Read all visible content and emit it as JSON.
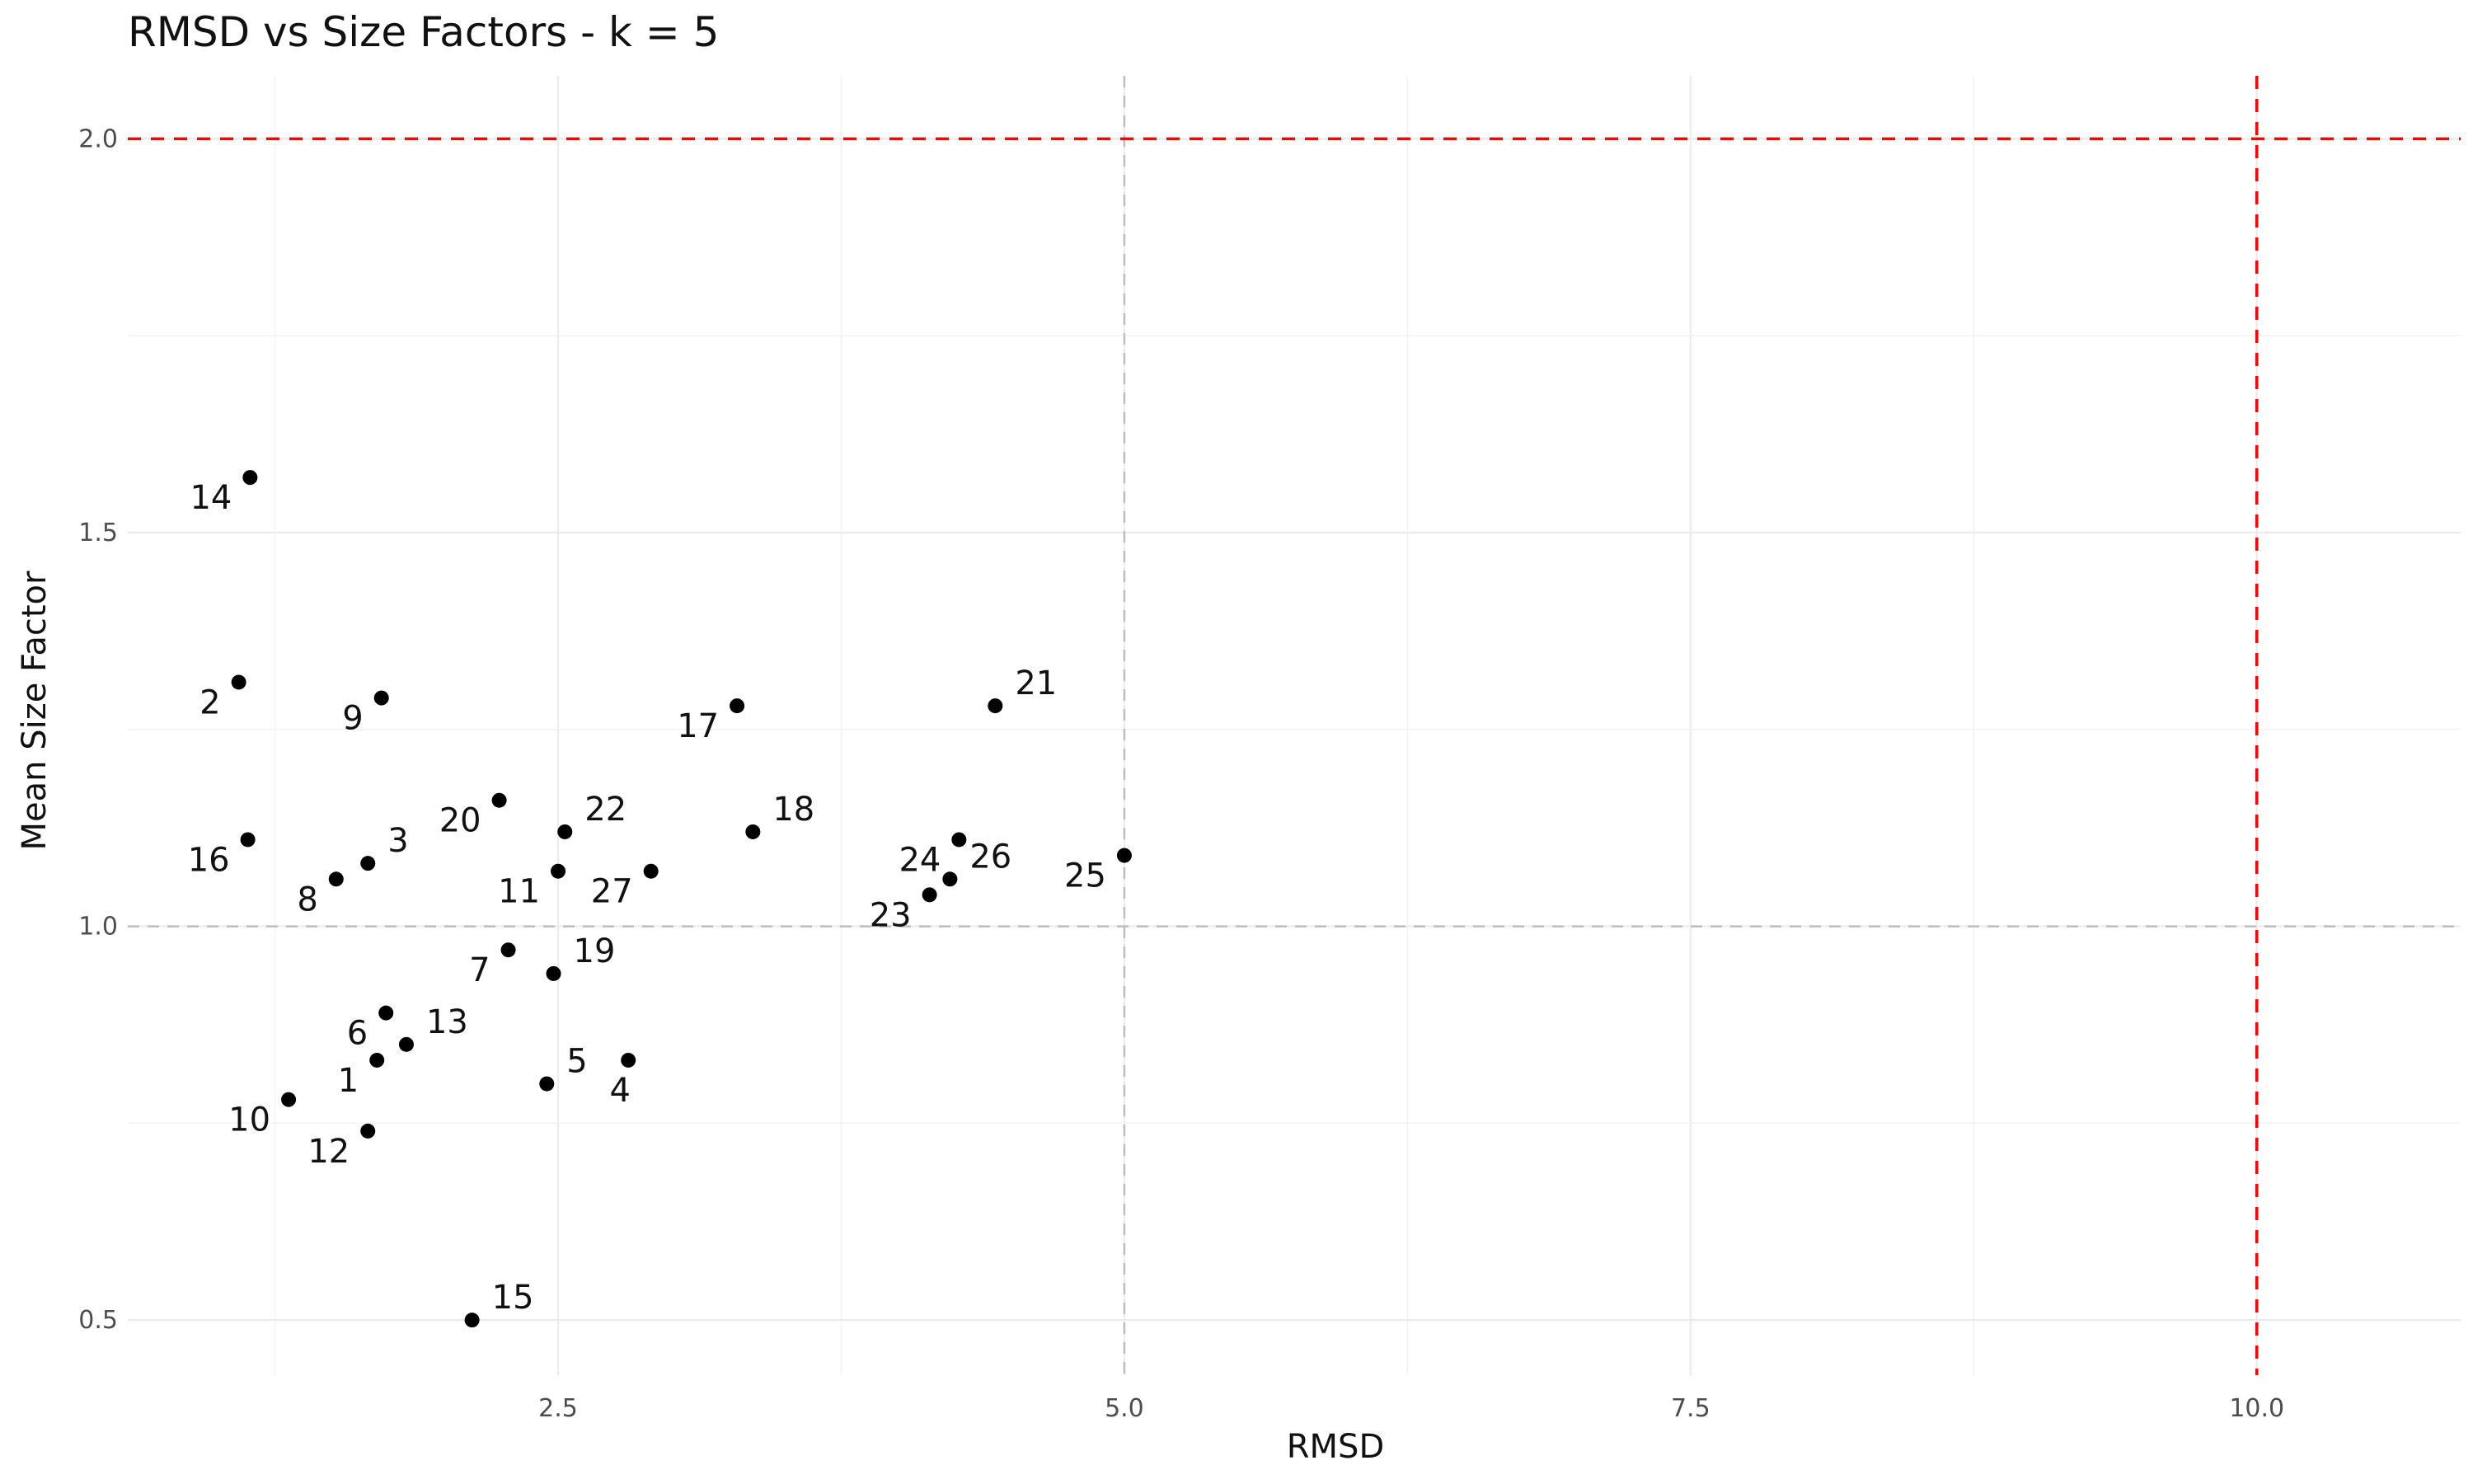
{
  "chart_data": {
    "type": "scatter",
    "title": "RMSD vs Size Factors - k = 5",
    "xlabel": "RMSD",
    "ylabel": "Mean Size Factor",
    "xlim": [
      0.6,
      10.9
    ],
    "ylim": [
      0.43,
      2.08
    ],
    "x_ticks": [
      2.5,
      5.0,
      7.5,
      10.0
    ],
    "x_tick_labels": [
      "2.5",
      "5.0",
      "7.5",
      "10.0"
    ],
    "y_ticks": [
      0.5,
      1.0,
      1.5,
      2.0
    ],
    "y_tick_labels": [
      "0.5",
      "1.0",
      "1.5",
      "2.0"
    ],
    "grid": true,
    "point_color": "#000000",
    "reference_lines": [
      {
        "orientation": "vertical",
        "value": 5.0,
        "color": "#bdbdbd",
        "style": "dashed"
      },
      {
        "orientation": "horizontal",
        "value": 1.0,
        "color": "#bdbdbd",
        "style": "dashed"
      },
      {
        "orientation": "vertical",
        "value": 10.0,
        "color": "#ff0000",
        "style": "dashed"
      },
      {
        "orientation": "horizontal",
        "value": 2.0,
        "color": "#ff0000",
        "style": "dashed"
      }
    ],
    "points": [
      {
        "label": "1",
        "x": 1.7,
        "y": 0.83,
        "label_pos": "left"
      },
      {
        "label": "2",
        "x": 1.09,
        "y": 1.31,
        "label_pos": "left"
      },
      {
        "label": "3",
        "x": 1.66,
        "y": 1.08,
        "label_pos": "right"
      },
      {
        "label": "4",
        "x": 2.81,
        "y": 0.83,
        "label_pos": "below"
      },
      {
        "label": "5",
        "x": 2.45,
        "y": 0.8,
        "label_pos": "right"
      },
      {
        "label": "6",
        "x": 1.74,
        "y": 0.89,
        "label_pos": "left"
      },
      {
        "label": "7",
        "x": 2.28,
        "y": 0.97,
        "label_pos": "left"
      },
      {
        "label": "8",
        "x": 1.52,
        "y": 1.06,
        "label_pos": "left"
      },
      {
        "label": "9",
        "x": 1.72,
        "y": 1.29,
        "label_pos": "left"
      },
      {
        "label": "10",
        "x": 1.31,
        "y": 0.78,
        "label_pos": "left"
      },
      {
        "label": "11",
        "x": 2.5,
        "y": 1.07,
        "label_pos": "left"
      },
      {
        "label": "12",
        "x": 1.66,
        "y": 0.74,
        "label_pos": "left"
      },
      {
        "label": "13",
        "x": 1.83,
        "y": 0.85,
        "label_pos": "right"
      },
      {
        "label": "14",
        "x": 1.14,
        "y": 1.57,
        "label_pos": "left"
      },
      {
        "label": "15",
        "x": 2.12,
        "y": 0.5,
        "label_pos": "right"
      },
      {
        "label": "16",
        "x": 1.13,
        "y": 1.11,
        "label_pos": "left"
      },
      {
        "label": "17",
        "x": 3.29,
        "y": 1.28,
        "label_pos": "left"
      },
      {
        "label": "18",
        "x": 3.36,
        "y": 1.12,
        "label_pos": "right"
      },
      {
        "label": "19",
        "x": 2.48,
        "y": 0.94,
        "label_pos": "right"
      },
      {
        "label": "20",
        "x": 2.24,
        "y": 1.16,
        "label_pos": "left"
      },
      {
        "label": "21",
        "x": 4.43,
        "y": 1.28,
        "label_pos": "right"
      },
      {
        "label": "22",
        "x": 2.53,
        "y": 1.12,
        "label_pos": "right"
      },
      {
        "label": "23",
        "x": 4.14,
        "y": 1.04,
        "label_pos": "left"
      },
      {
        "label": "24",
        "x": 4.27,
        "y": 1.11,
        "label_pos": "left"
      },
      {
        "label": "25",
        "x": 5.0,
        "y": 1.09,
        "label_pos": "left"
      },
      {
        "label": "26",
        "x": 4.23,
        "y": 1.06,
        "label_pos": "right"
      },
      {
        "label": "27",
        "x": 2.91,
        "y": 1.07,
        "label_pos": "left"
      }
    ]
  }
}
